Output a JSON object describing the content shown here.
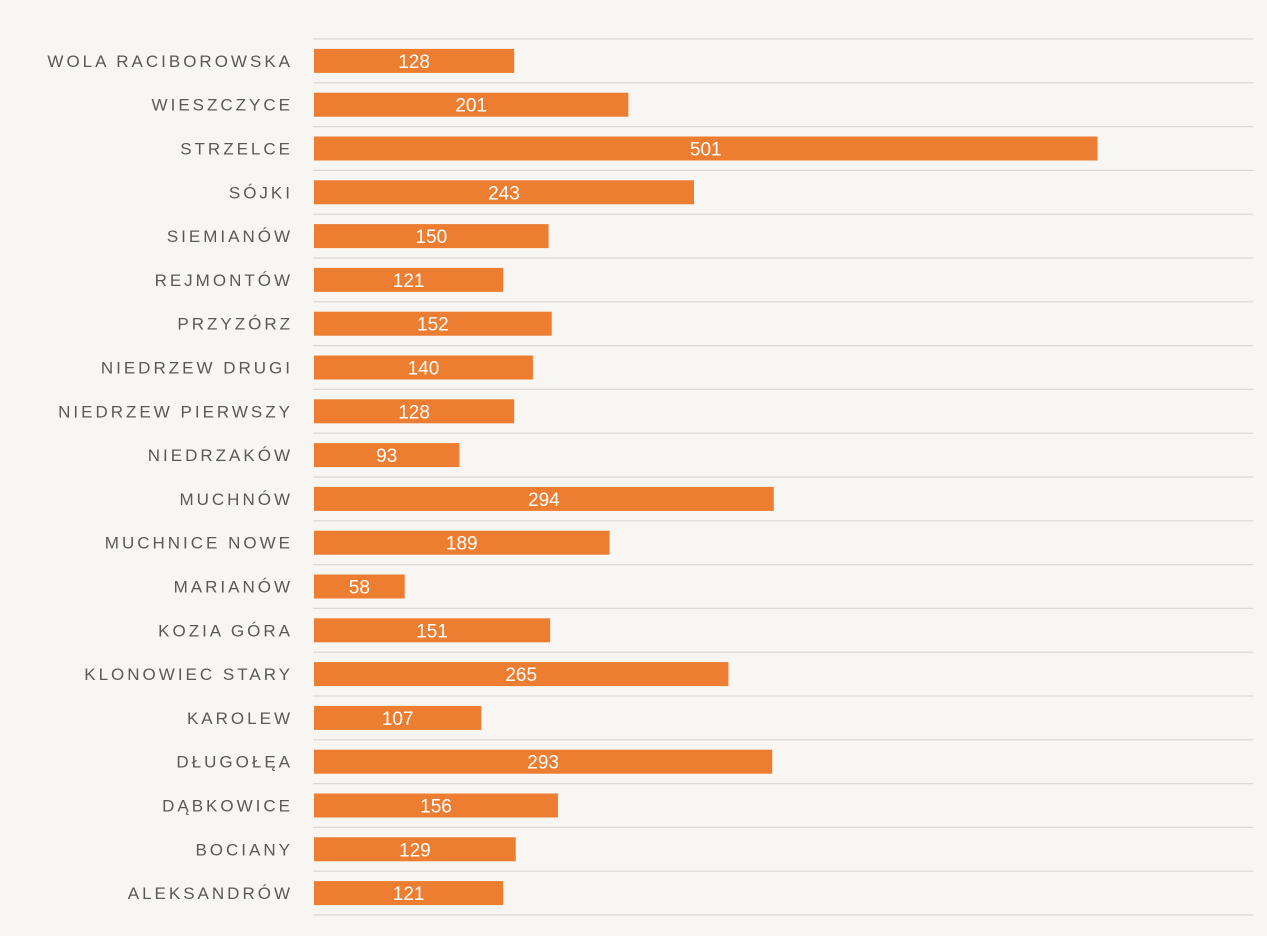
{
  "chart_data": {
    "type": "bar",
    "orientation": "horizontal",
    "categories": [
      "WOLA RACIBOROWSKA",
      "WIESZCZYCE",
      "STRZELCE",
      "SÓJKI",
      "SIEMIANÓW",
      "REJMONTÓW",
      "PRZYZÓRZ",
      "NIEDRZEW DRUGI",
      "NIEDRZEW PIERWSZY",
      "NIEDRZAKÓW",
      "MUCHNÓW",
      "MUCHNICE NOWE",
      "MARIANÓW",
      "KOZIA GÓRA",
      "KLONOWIEC STARY",
      "KAROLEW",
      "DŁUGOŁĘA",
      "DĄBKOWICE",
      "BOCIANY",
      "ALEKSANDRÓW"
    ],
    "values": [
      128,
      201,
      501,
      243,
      150,
      121,
      152,
      140,
      128,
      93,
      294,
      189,
      58,
      151,
      265,
      107,
      293,
      156,
      129,
      121
    ],
    "title": "",
    "xlabel": "",
    "ylabel": "",
    "xlim": [
      0,
      600
    ],
    "data_labels": "inside-center",
    "value_axis_visible": false,
    "grid": true,
    "legend": "none",
    "colors": {
      "bar": "#ed7d31",
      "gridline": "#d9d9d9",
      "category_text": "#595959",
      "data_label_text": "#ffffff",
      "background": "#f7f6f3"
    }
  }
}
